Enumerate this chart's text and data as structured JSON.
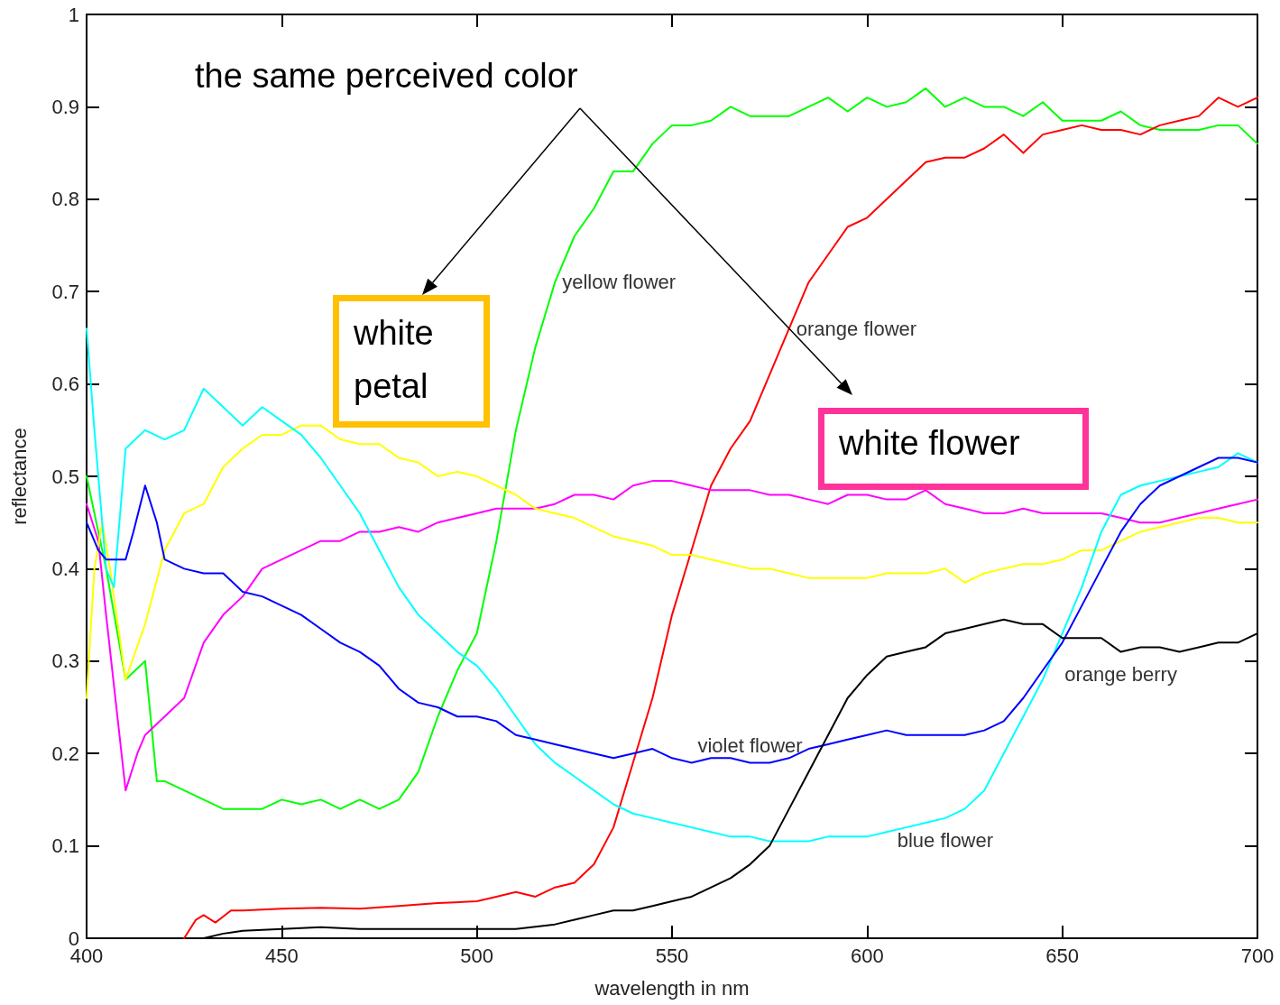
{
  "chart_data": {
    "type": "line",
    "xlabel": "wavelength in nm",
    "ylabel": "reflectance",
    "annotations": [
      "the same perceived color",
      "white petal",
      "white flower"
    ],
    "xlim": [
      400,
      700
    ],
    "xticks": [
      400,
      450,
      500,
      550,
      600,
      650,
      700
    ],
    "ylim": [
      0,
      1
    ],
    "yticks": [
      0,
      0.1,
      0.2,
      0.3,
      0.4,
      0.5,
      0.6,
      0.7,
      0.8,
      0.9,
      1
    ],
    "grid": false,
    "legend": false,
    "marker": "none",
    "line_style": "solid",
    "series": [
      {
        "name": "yellow flower",
        "color": "#00ff00",
        "x": [
          400,
          405,
          410,
          415,
          418,
          420,
          425,
          430,
          435,
          440,
          445,
          450,
          455,
          460,
          465,
          470,
          475,
          480,
          485,
          490,
          495,
          500,
          505,
          510,
          515,
          520,
          525,
          530,
          535,
          540,
          545,
          550,
          555,
          560,
          565,
          570,
          575,
          580,
          585,
          590,
          595,
          600,
          605,
          610,
          615,
          620,
          625,
          630,
          635,
          640,
          645,
          650,
          655,
          660,
          665,
          670,
          675,
          680,
          685,
          690,
          695,
          700
        ],
        "values": [
          0.5,
          0.4,
          0.28,
          0.3,
          0.17,
          0.17,
          0.16,
          0.15,
          0.14,
          0.14,
          0.14,
          0.15,
          0.145,
          0.15,
          0.14,
          0.15,
          0.14,
          0.15,
          0.18,
          0.24,
          0.29,
          0.33,
          0.43,
          0.55,
          0.64,
          0.71,
          0.76,
          0.79,
          0.83,
          0.83,
          0.86,
          0.88,
          0.88,
          0.885,
          0.9,
          0.89,
          0.89,
          0.89,
          0.9,
          0.91,
          0.895,
          0.91,
          0.9,
          0.905,
          0.92,
          0.9,
          0.91,
          0.9,
          0.9,
          0.89,
          0.905,
          0.885,
          0.885,
          0.885,
          0.895,
          0.88,
          0.875,
          0.875,
          0.875,
          0.88,
          0.88,
          0.86
        ]
      },
      {
        "name": "orange flower",
        "color": "#ff0000",
        "x": [
          425,
          428,
          430,
          433,
          437,
          440,
          450,
          460,
          470,
          480,
          490,
          500,
          505,
          510,
          515,
          520,
          525,
          530,
          535,
          540,
          545,
          550,
          555,
          560,
          565,
          570,
          575,
          580,
          585,
          590,
          595,
          600,
          605,
          610,
          615,
          620,
          625,
          630,
          635,
          640,
          645,
          650,
          655,
          660,
          665,
          670,
          675,
          680,
          685,
          690,
          695,
          700
        ],
        "values": [
          0,
          0.02,
          0.025,
          0.017,
          0.03,
          0.03,
          0.032,
          0.033,
          0.032,
          0.035,
          0.038,
          0.04,
          0.045,
          0.05,
          0.045,
          0.055,
          0.06,
          0.08,
          0.12,
          0.19,
          0.26,
          0.35,
          0.42,
          0.49,
          0.53,
          0.56,
          0.61,
          0.66,
          0.71,
          0.74,
          0.77,
          0.78,
          0.8,
          0.82,
          0.84,
          0.845,
          0.845,
          0.855,
          0.87,
          0.85,
          0.87,
          0.875,
          0.88,
          0.875,
          0.875,
          0.87,
          0.88,
          0.885,
          0.89,
          0.91,
          0.9,
          0.91
        ]
      },
      {
        "color": "#ff00ff",
        "x": [
          400,
          403,
          405,
          410,
          413,
          415,
          420,
          425,
          430,
          435,
          440,
          445,
          450,
          455,
          460,
          465,
          470,
          475,
          480,
          485,
          490,
          495,
          500,
          505,
          510,
          515,
          520,
          525,
          530,
          535,
          540,
          545,
          550,
          555,
          560,
          565,
          570,
          575,
          580,
          585,
          590,
          595,
          600,
          605,
          610,
          615,
          620,
          625,
          630,
          635,
          640,
          645,
          650,
          655,
          660,
          665,
          670,
          675,
          680,
          685,
          690,
          695,
          700
        ],
        "values": [
          0.47,
          0.43,
          0.35,
          0.16,
          0.2,
          0.22,
          0.24,
          0.26,
          0.32,
          0.35,
          0.37,
          0.4,
          0.41,
          0.42,
          0.43,
          0.43,
          0.44,
          0.44,
          0.445,
          0.44,
          0.45,
          0.455,
          0.46,
          0.465,
          0.465,
          0.465,
          0.47,
          0.48,
          0.48,
          0.475,
          0.49,
          0.495,
          0.495,
          0.49,
          0.485,
          0.485,
          0.485,
          0.48,
          0.48,
          0.475,
          0.47,
          0.48,
          0.48,
          0.475,
          0.475,
          0.485,
          0.47,
          0.465,
          0.46,
          0.46,
          0.465,
          0.46,
          0.46,
          0.46,
          0.46,
          0.455,
          0.45,
          0.45,
          0.455,
          0.46,
          0.465,
          0.47,
          0.475
        ]
      },
      {
        "color": "#ffff00",
        "x": [
          400,
          402,
          404,
          406,
          410,
          415,
          420,
          425,
          430,
          435,
          440,
          445,
          450,
          455,
          460,
          465,
          470,
          475,
          480,
          485,
          490,
          495,
          500,
          505,
          510,
          515,
          520,
          525,
          530,
          535,
          540,
          545,
          550,
          555,
          560,
          565,
          570,
          575,
          580,
          585,
          590,
          595,
          600,
          605,
          610,
          615,
          620,
          625,
          630,
          635,
          640,
          645,
          650,
          655,
          660,
          665,
          670,
          675,
          680,
          685,
          690,
          695,
          700
        ],
        "values": [
          0.26,
          0.4,
          0.45,
          0.4,
          0.28,
          0.34,
          0.42,
          0.46,
          0.47,
          0.51,
          0.53,
          0.545,
          0.545,
          0.555,
          0.555,
          0.54,
          0.535,
          0.535,
          0.52,
          0.515,
          0.5,
          0.505,
          0.5,
          0.49,
          0.48,
          0.465,
          0.46,
          0.455,
          0.445,
          0.435,
          0.43,
          0.425,
          0.415,
          0.415,
          0.41,
          0.405,
          0.4,
          0.4,
          0.395,
          0.39,
          0.39,
          0.39,
          0.39,
          0.395,
          0.395,
          0.395,
          0.4,
          0.385,
          0.395,
          0.4,
          0.405,
          0.405,
          0.41,
          0.42,
          0.42,
          0.43,
          0.44,
          0.445,
          0.45,
          0.455,
          0.455,
          0.45,
          0.45
        ]
      },
      {
        "name": "blue flower",
        "color": "#00ffff",
        "x": [
          400,
          402,
          405,
          407,
          410,
          415,
          420,
          425,
          430,
          435,
          440,
          445,
          450,
          455,
          460,
          465,
          470,
          475,
          480,
          485,
          490,
          495,
          500,
          505,
          510,
          515,
          520,
          525,
          530,
          535,
          540,
          545,
          550,
          555,
          560,
          565,
          570,
          575,
          580,
          585,
          590,
          595,
          600,
          605,
          610,
          615,
          620,
          625,
          630,
          635,
          640,
          645,
          650,
          655,
          660,
          665,
          670,
          675,
          680,
          685,
          690,
          695,
          700
        ],
        "values": [
          0.66,
          0.55,
          0.4,
          0.38,
          0.53,
          0.55,
          0.54,
          0.55,
          0.595,
          0.575,
          0.555,
          0.575,
          0.56,
          0.545,
          0.52,
          0.49,
          0.46,
          0.42,
          0.38,
          0.35,
          0.33,
          0.31,
          0.295,
          0.27,
          0.24,
          0.21,
          0.19,
          0.175,
          0.16,
          0.145,
          0.135,
          0.13,
          0.125,
          0.12,
          0.115,
          0.11,
          0.11,
          0.105,
          0.105,
          0.105,
          0.11,
          0.11,
          0.11,
          0.115,
          0.12,
          0.125,
          0.13,
          0.14,
          0.16,
          0.2,
          0.24,
          0.28,
          0.33,
          0.38,
          0.44,
          0.48,
          0.49,
          0.495,
          0.5,
          0.505,
          0.51,
          0.525,
          0.515
        ]
      },
      {
        "name": "violet flower",
        "color": "#0000ff",
        "x": [
          400,
          403,
          405,
          410,
          412,
          415,
          418,
          420,
          425,
          430,
          435,
          440,
          445,
          450,
          455,
          460,
          465,
          470,
          475,
          480,
          485,
          490,
          495,
          500,
          505,
          510,
          515,
          520,
          525,
          530,
          535,
          540,
          545,
          550,
          555,
          560,
          565,
          570,
          575,
          580,
          585,
          590,
          595,
          600,
          605,
          610,
          615,
          620,
          625,
          630,
          635,
          640,
          645,
          650,
          655,
          660,
          665,
          670,
          675,
          680,
          685,
          690,
          695,
          700
        ],
        "values": [
          0.45,
          0.42,
          0.41,
          0.41,
          0.44,
          0.49,
          0.45,
          0.41,
          0.4,
          0.395,
          0.395,
          0.375,
          0.37,
          0.36,
          0.35,
          0.335,
          0.32,
          0.31,
          0.295,
          0.27,
          0.255,
          0.25,
          0.24,
          0.24,
          0.235,
          0.22,
          0.215,
          0.21,
          0.205,
          0.2,
          0.195,
          0.2,
          0.205,
          0.195,
          0.19,
          0.195,
          0.195,
          0.19,
          0.19,
          0.195,
          0.205,
          0.21,
          0.215,
          0.22,
          0.225,
          0.22,
          0.22,
          0.22,
          0.22,
          0.225,
          0.235,
          0.26,
          0.29,
          0.32,
          0.36,
          0.4,
          0.44,
          0.47,
          0.49,
          0.5,
          0.51,
          0.52,
          0.52,
          0.515
        ]
      },
      {
        "name": "orange berry",
        "color": "#000000",
        "x": [
          430,
          435,
          440,
          450,
          460,
          470,
          480,
          500,
          510,
          520,
          525,
          530,
          535,
          540,
          545,
          550,
          555,
          560,
          565,
          570,
          575,
          580,
          585,
          590,
          595,
          600,
          605,
          610,
          615,
          620,
          625,
          630,
          635,
          640,
          645,
          650,
          655,
          660,
          665,
          670,
          675,
          680,
          685,
          690,
          695,
          700
        ],
        "values": [
          0,
          0.005,
          0.008,
          0.01,
          0.012,
          0.01,
          0.01,
          0.01,
          0.01,
          0.015,
          0.02,
          0.025,
          0.03,
          0.03,
          0.035,
          0.04,
          0.045,
          0.055,
          0.065,
          0.08,
          0.1,
          0.14,
          0.18,
          0.22,
          0.26,
          0.285,
          0.305,
          0.31,
          0.315,
          0.33,
          0.335,
          0.34,
          0.345,
          0.34,
          0.34,
          0.325,
          0.325,
          0.325,
          0.31,
          0.315,
          0.315,
          0.31,
          0.315,
          0.32,
          0.32,
          0.33
        ]
      }
    ]
  }
}
